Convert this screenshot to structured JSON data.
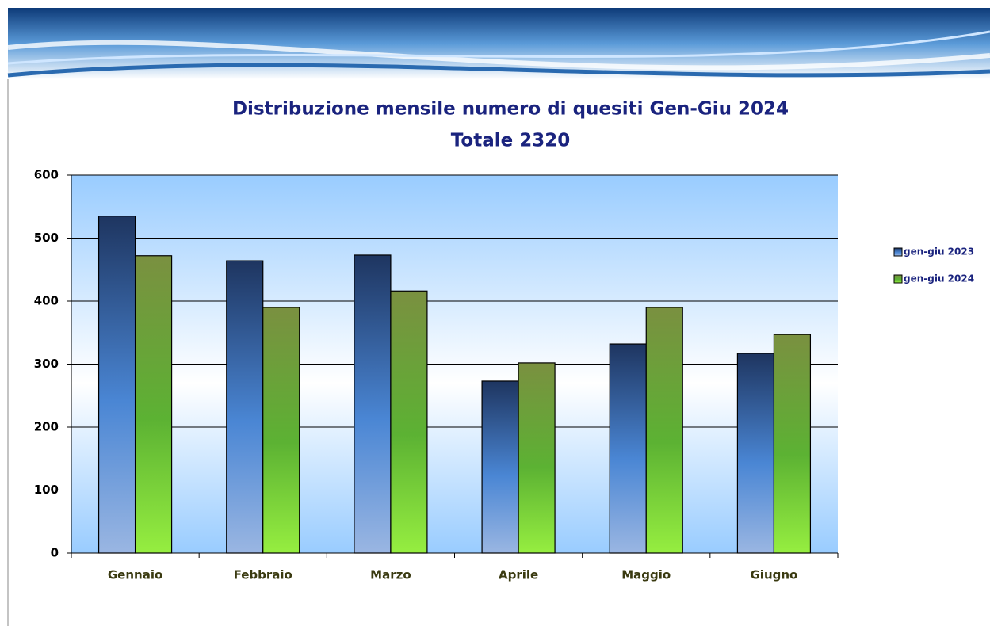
{
  "chart_data": {
    "type": "bar",
    "title": "Distribuzione mensile numero di quesiti Gen-Giu 2024",
    "subtitle": "Totale 2320",
    "categories": [
      "Gennaio",
      "Febbraio",
      "Marzo",
      "Aprile",
      "Maggio",
      "Giugno"
    ],
    "series": [
      {
        "name": "gen-giu 2023",
        "color": "#4a86d4",
        "values": [
          535,
          464,
          473,
          273,
          332,
          317
        ]
      },
      {
        "name": "gen-giu 2024",
        "color": "#5cb233",
        "values": [
          472,
          390,
          416,
          302,
          390,
          347
        ]
      }
    ],
    "ylim": [
      0,
      600
    ],
    "yticks": [
      0,
      100,
      200,
      300,
      400,
      500,
      600
    ],
    "grid": true,
    "legend": "right"
  }
}
